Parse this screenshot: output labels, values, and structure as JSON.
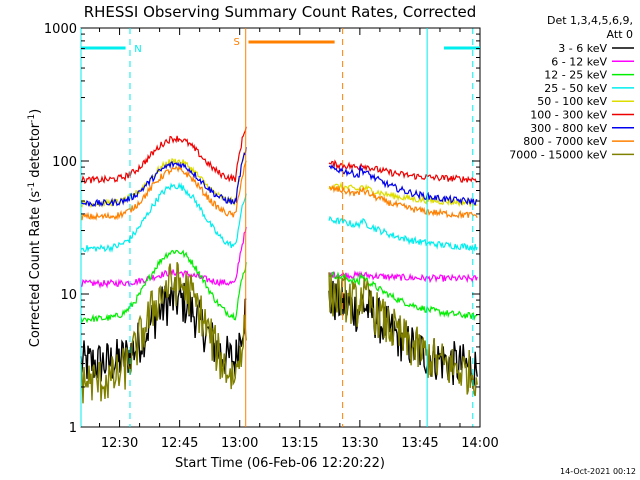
{
  "chart_data": {
    "type": "line",
    "title": "RHESSI Observing Summary Count Rates, Corrected",
    "xlabel": "Start Time (06-Feb-06 12:20:22)",
    "ylabel_main": "Corrected Count Rate (s",
    "ylabel_sup1": "-1",
    "ylabel_mid": " detector",
    "ylabel_sup2": "-1",
    "ylabel_end": ")",
    "yscale": "log",
    "ylim": [
      1,
      1000
    ],
    "xlim_minutes": [
      740.37,
      840.0
    ],
    "x_ticks": [
      {
        "t": 750,
        "label": "12:30"
      },
      {
        "t": 765,
        "label": "12:45"
      },
      {
        "t": 780,
        "label": "13:00"
      },
      {
        "t": 795,
        "label": "13:15"
      },
      {
        "t": 810,
        "label": "13:30"
      },
      {
        "t": 825,
        "label": "13:45"
      },
      {
        "t": 840,
        "label": "14:00"
      }
    ],
    "y_ticks": [
      {
        "v": 1,
        "label": "1"
      },
      {
        "v": 10,
        "label": "10"
      },
      {
        "v": 100,
        "label": "100"
      },
      {
        "v": 1000,
        "label": "1000"
      }
    ],
    "legend_header": [
      "Det 1,3,4,5,6,9,",
      "Att 0"
    ],
    "series": [
      {
        "name": "3 - 6 keV",
        "color": "#000000",
        "pre": [
          3,
          9.0
        ],
        "post": [
          2.5,
          9.0,
          2.5
        ]
      },
      {
        "name": "6 - 12 keV",
        "color": "#ff00ff",
        "pre": [
          12,
          14.5
        ],
        "post": [
          13,
          14,
          13
        ]
      },
      {
        "name": "12 - 25 keV",
        "color": "#00ee00",
        "pre": [
          6.5,
          21
        ],
        "post": [
          6.5,
          14,
          6.5
        ]
      },
      {
        "name": "25 - 50 keV",
        "color": "#00eeee",
        "pre": [
          22,
          65
        ],
        "post": [
          22,
          36,
          22
        ]
      },
      {
        "name": "50 - 100 keV",
        "color": "#dddd00",
        "pre": [
          48,
          100
        ],
        "post": [
          48,
          65,
          48
        ]
      },
      {
        "name": "100 - 300 keV",
        "color": "#ee0000",
        "pre": [
          72,
          148
        ],
        "post": [
          72,
          95,
          72
        ]
      },
      {
        "name": "300 - 800 keV",
        "color": "#0000ee",
        "pre": [
          48,
          95
        ],
        "post": [
          48,
          88,
          48
        ]
      },
      {
        "name": "800 - 7000 keV",
        "color": "#ff8000",
        "pre": [
          38,
          86
        ],
        "post": [
          38,
          62,
          38
        ]
      },
      {
        "name": "7000 - 15000 keV",
        "color": "#808000",
        "pre": [
          2.2,
          12
        ],
        "post": [
          2.2,
          10,
          2.2
        ]
      }
    ],
    "cyan_segments": [
      [
        740.37,
        751.5
      ],
      [
        831.0,
        840.0
      ]
    ],
    "cyan_label": "N",
    "saa_label": "S",
    "vlines_solid_cyan": [
      740.37,
      826.8
    ],
    "vlines_dashed_cyan": [
      752.6,
      838.2
    ],
    "vline_solid_orange": 781.5,
    "vline_dashed_orange": 805.7,
    "orange_bar": [
      782.2,
      803.7
    ],
    "gap": [
      781.8,
      802.3
    ]
  },
  "timestamp": "14-Oct-2021 00:12"
}
